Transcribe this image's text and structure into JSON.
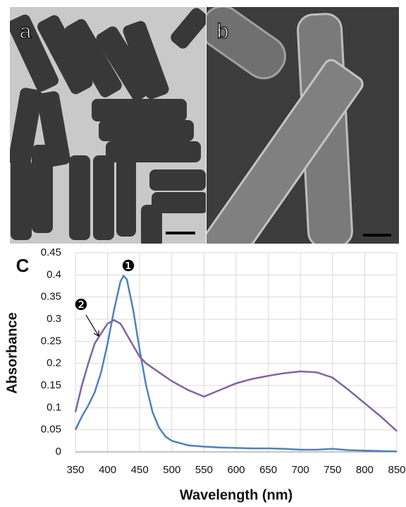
{
  "panels": [
    "a",
    "b"
  ],
  "chart_data": {
    "type": "line",
    "panel_label": "C",
    "x_label": "Wavelength (nm)",
    "y_label": "Absorbance",
    "x": [
      350,
      360,
      370,
      380,
      390,
      400,
      410,
      420,
      425,
      430,
      440,
      450,
      460,
      470,
      480,
      490,
      500,
      525,
      550,
      575,
      600,
      625,
      650,
      675,
      700,
      725,
      750,
      775,
      800,
      825,
      850
    ],
    "series": [
      {
        "name": "❶",
        "color": "#4f81bd",
        "values": [
          0.05,
          0.08,
          0.105,
          0.135,
          0.18,
          0.245,
          0.32,
          0.385,
          0.398,
          0.39,
          0.32,
          0.23,
          0.15,
          0.09,
          0.055,
          0.035,
          0.025,
          0.015,
          0.012,
          0.01,
          0.009,
          0.008,
          0.008,
          0.007,
          0.005,
          0.005,
          0.007,
          0.004,
          0.003,
          0.002,
          0.001
        ]
      },
      {
        "name": "❷",
        "color": "#8064a2",
        "values": [
          0.09,
          0.15,
          0.2,
          0.245,
          0.268,
          0.29,
          0.298,
          0.29,
          0.278,
          0.265,
          0.24,
          0.215,
          0.2,
          0.19,
          0.18,
          0.17,
          0.16,
          0.14,
          0.125,
          0.14,
          0.155,
          0.165,
          0.172,
          0.178,
          0.182,
          0.18,
          0.168,
          0.14,
          0.11,
          0.08,
          0.047
        ]
      }
    ],
    "xlim": [
      350,
      850
    ],
    "xticks": [
      350,
      400,
      450,
      500,
      550,
      600,
      650,
      700,
      750,
      800,
      850
    ],
    "ylim": [
      0,
      0.45
    ],
    "yticks": [
      0,
      0.05,
      0.1,
      0.15,
      0.2,
      0.25,
      0.3,
      0.35,
      0.4,
      0.45
    ],
    "grid": true
  }
}
